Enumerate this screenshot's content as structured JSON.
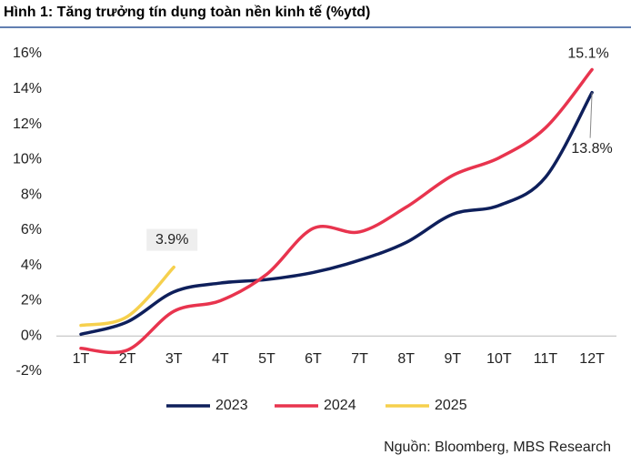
{
  "chart_data": {
    "type": "line",
    "title": "Hình 1: Tăng trưởng tín dụng toàn nền kinh tế (%ytd)",
    "source": "Nguồn: Bloomberg, MBS Research",
    "categories": [
      "1T",
      "2T",
      "3T",
      "4T",
      "5T",
      "6T",
      "7T",
      "8T",
      "9T",
      "10T",
      "11T",
      "12T"
    ],
    "series": [
      {
        "name": "2023",
        "color": "#0e1f5b",
        "values": [
          0.1,
          0.8,
          2.5,
          3.0,
          3.2,
          3.6,
          4.3,
          5.3,
          6.9,
          7.4,
          9.0,
          13.8
        ],
        "value_labels": [
          null,
          null,
          null,
          null,
          null,
          null,
          null,
          null,
          null,
          null,
          null,
          "13.8%"
        ]
      },
      {
        "name": "2024",
        "color": "#e8344e",
        "values": [
          -0.7,
          -0.8,
          1.4,
          2.0,
          3.5,
          6.1,
          5.9,
          7.3,
          9.1,
          10.1,
          11.8,
          15.1
        ],
        "value_labels": [
          null,
          null,
          null,
          null,
          null,
          null,
          null,
          null,
          null,
          null,
          null,
          "15.1%"
        ]
      },
      {
        "name": "2025",
        "color": "#f6d04d",
        "values": [
          0.6,
          1.1,
          3.9,
          null,
          null,
          null,
          null,
          null,
          null,
          null,
          null,
          null
        ],
        "value_labels": [
          null,
          null,
          "3.9%",
          null,
          null,
          null,
          null,
          null,
          null,
          null,
          null,
          null
        ]
      }
    ],
    "ylim": [
      -2,
      16
    ],
    "yticks": [
      {
        "value": -2,
        "label": "-2%"
      },
      {
        "value": 0,
        "label": "0%"
      },
      {
        "value": 2,
        "label": "2%"
      },
      {
        "value": 4,
        "label": "4%"
      },
      {
        "value": 6,
        "label": "6%"
      },
      {
        "value": 8,
        "label": "8%"
      },
      {
        "value": 10,
        "label": "10%"
      },
      {
        "value": 12,
        "label": "12%"
      },
      {
        "value": 14,
        "label": "14%"
      },
      {
        "value": 16,
        "label": "16%"
      }
    ],
    "grid": false,
    "legend": "bottom"
  }
}
